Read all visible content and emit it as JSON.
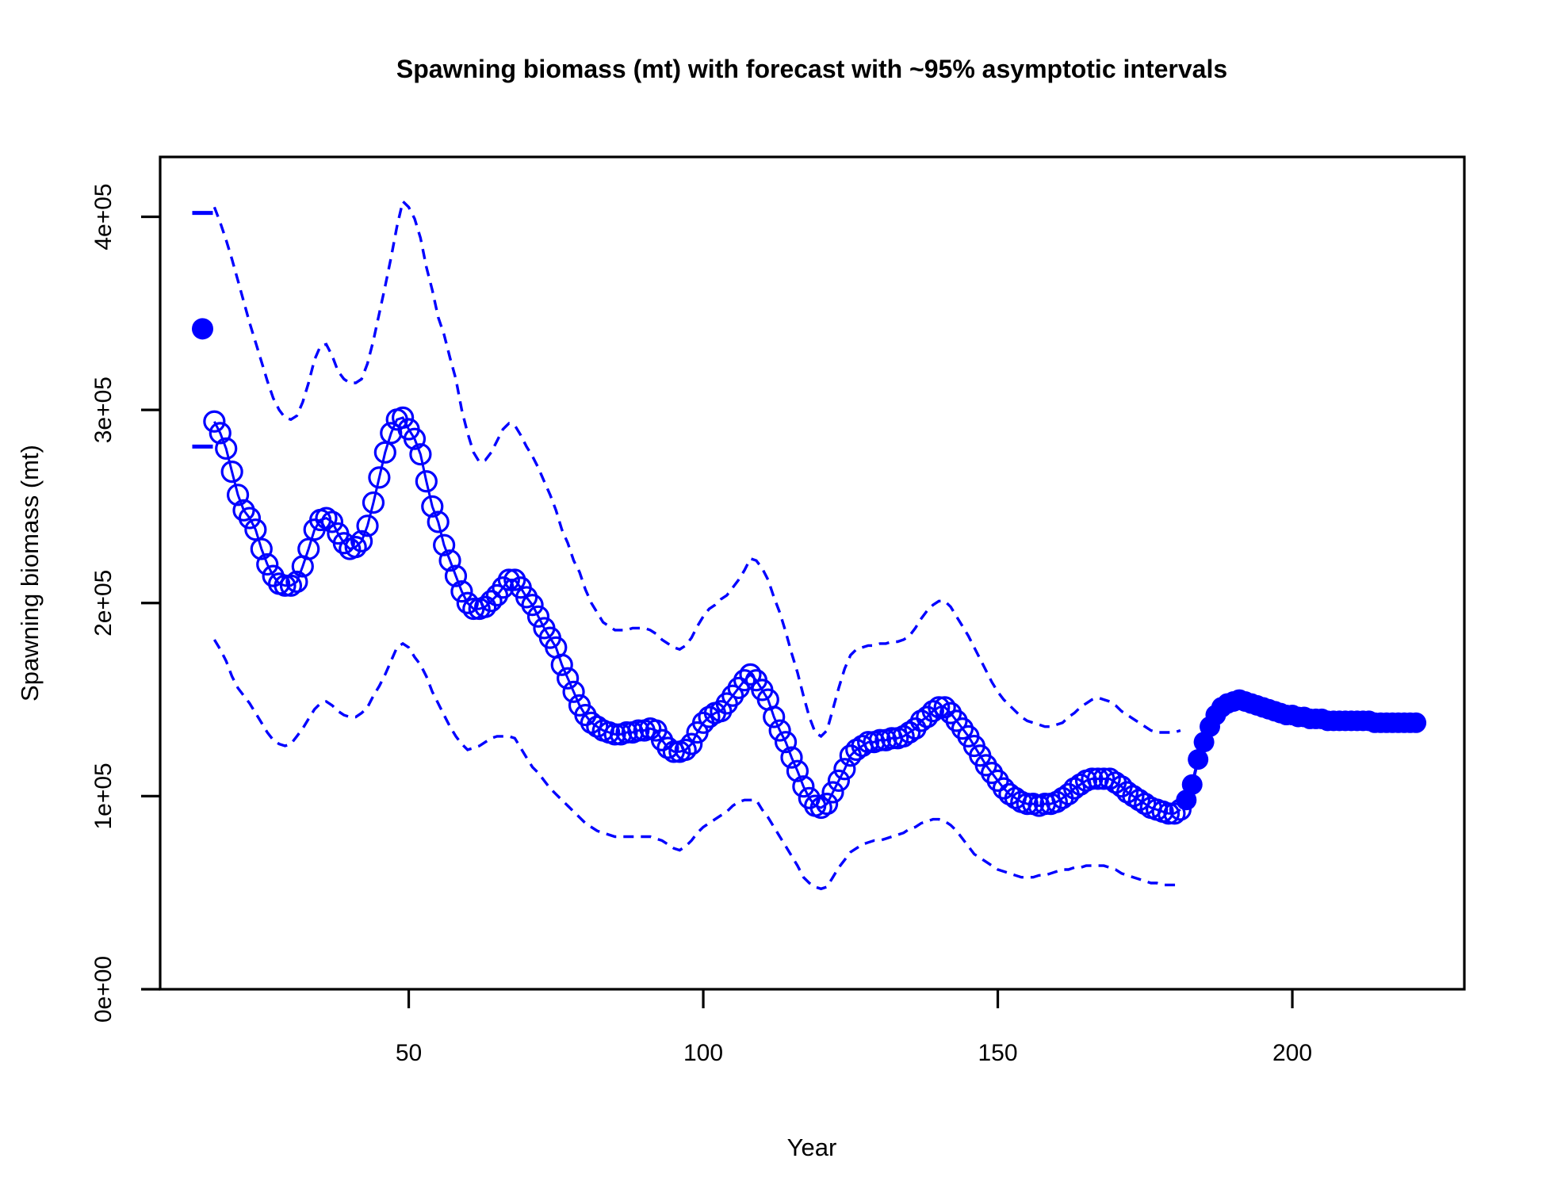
{
  "chart_data": {
    "type": "line",
    "title": "Spawning biomass (mt) with forecast with ~95% asymptotic intervals",
    "xlabel": "Year",
    "ylabel": "Spawning biomass (mt)",
    "x_ticks": [
      50,
      100,
      150,
      200
    ],
    "y_ticks": [
      {
        "value": 0,
        "label": "0e+00"
      },
      {
        "value": 100000,
        "label": "1e+05"
      },
      {
        "value": 200000,
        "label": "2e+05"
      },
      {
        "value": 300000,
        "label": "3e+05"
      },
      {
        "value": 400000,
        "label": "4e+05"
      }
    ],
    "xlim": [
      7.8,
      229.2
    ],
    "ylim": [
      0,
      431000
    ],
    "grid": false,
    "legend_position": "none",
    "accent_color": "#0000ff",
    "frame_color": "#000000",
    "units_note": "series values in thousands of mt",
    "series": [
      {
        "name": "virgin-biomass-point",
        "style": "filled_point_with_ci_dashes",
        "x": [
          15
        ],
        "values": [
          342
        ],
        "ci_upper": [
          402
        ],
        "ci_lower": [
          281
        ]
      },
      {
        "name": "estimated-spawning-biomass",
        "style": "line_open_circles",
        "start_year": 17,
        "values": [
          294,
          288,
          280,
          268,
          256,
          248,
          244,
          238,
          228,
          220,
          214,
          210,
          209,
          209,
          211,
          219,
          228,
          238,
          243,
          244,
          242,
          236,
          231,
          228,
          229,
          232,
          240,
          252,
          265,
          278,
          288,
          295,
          296,
          290,
          285,
          277,
          263,
          250,
          242,
          230,
          222,
          214,
          206,
          200,
          197,
          197,
          198,
          201,
          204,
          208,
          212,
          212,
          208,
          203,
          199,
          193,
          187,
          182,
          177,
          168,
          161,
          154,
          147,
          142,
          138,
          136,
          134,
          133,
          132,
          132,
          133,
          133,
          134,
          134,
          135,
          134,
          129,
          125,
          123,
          123,
          124,
          127,
          133,
          138,
          141,
          143,
          144,
          148,
          152,
          156,
          160,
          163,
          160,
          155,
          150,
          141,
          134,
          128,
          120,
          113,
          105,
          99,
          95,
          94,
          96,
          102,
          108,
          114,
          121,
          124,
          126,
          128,
          128,
          129,
          129,
          130,
          130,
          131,
          133,
          135,
          139,
          141,
          144,
          146,
          146,
          143,
          139,
          135,
          131,
          126,
          121,
          116,
          112,
          108,
          104,
          101,
          99,
          97,
          96,
          96,
          95,
          96,
          96,
          97,
          99,
          101,
          104,
          106,
          108,
          109,
          109,
          109,
          109,
          107,
          105,
          102,
          100,
          98,
          96,
          94,
          93,
          92,
          91,
          91,
          93
        ]
      },
      {
        "name": "forecast-spawning-biomass",
        "style": "line_filled_circles",
        "start_year": 182,
        "values": [
          98,
          106,
          119,
          128,
          136,
          142,
          146,
          148,
          149,
          150,
          149,
          148,
          147,
          146,
          145,
          144,
          143,
          142,
          142,
          141,
          141,
          140,
          140,
          140,
          139,
          139,
          139,
          139,
          139,
          139,
          139,
          139,
          138,
          138,
          138,
          138,
          138,
          138,
          138,
          138
        ]
      },
      {
        "name": "upper-95-interval",
        "style": "dashed_line",
        "start_year": 17,
        "values": [
          405,
          397,
          388,
          378,
          367,
          356,
          345,
          335,
          325,
          315,
          306,
          300,
          296,
          295,
          297,
          304,
          314,
          326,
          333,
          334,
          328,
          320,
          316,
          314,
          314,
          316,
          324,
          336,
          350,
          364,
          379,
          395,
          408,
          405,
          399,
          389,
          374,
          362,
          348,
          339,
          327,
          316,
          300,
          288,
          278,
          273,
          274,
          278,
          284,
          290,
          293,
          292,
          287,
          281,
          276,
          270,
          263,
          256,
          248,
          238,
          231,
          222,
          216,
          207,
          200,
          195,
          190,
          188,
          186,
          186,
          186,
          187,
          187,
          187,
          186,
          184,
          181,
          179,
          177,
          176,
          178,
          182,
          188,
          193,
          197,
          199,
          202,
          204,
          208,
          212,
          217,
          223,
          222,
          218,
          212,
          203,
          195,
          185,
          174,
          164,
          152,
          141,
          133,
          131,
          134,
          145,
          156,
          166,
          173,
          176,
          177,
          178,
          178,
          179,
          179,
          180,
          180,
          181,
          183,
          187,
          192,
          196,
          199,
          201,
          201,
          198,
          193,
          188,
          183,
          177,
          171,
          165,
          159,
          154,
          150,
          147,
          144,
          141,
          139,
          138,
          137,
          136,
          136,
          137,
          138,
          141,
          143,
          146,
          148,
          150,
          151,
          150,
          149,
          147,
          144,
          142,
          140,
          138,
          136,
          134,
          133,
          133,
          133,
          133,
          134
        ]
      },
      {
        "name": "lower-95-interval",
        "style": "dashed_line",
        "start_year": 17,
        "values": [
          181,
          176,
          170,
          162,
          156,
          152,
          148,
          143,
          138,
          133,
          129,
          127,
          126,
          127,
          131,
          135,
          140,
          145,
          148,
          149,
          147,
          144,
          142,
          141,
          141,
          143,
          146,
          152,
          157,
          163,
          170,
          177,
          179,
          177,
          172,
          168,
          162,
          154,
          148,
          142,
          136,
          131,
          127,
          124,
          125,
          126,
          128,
          130,
          131,
          131,
          131,
          130,
          125,
          120,
          115,
          112,
          108,
          104,
          101,
          98,
          95,
          92,
          89,
          86,
          84,
          82,
          81,
          80,
          79,
          79,
          79,
          79,
          79,
          79,
          79,
          78,
          77,
          75,
          73,
          72,
          74,
          77,
          81,
          84,
          86,
          88,
          90,
          92,
          95,
          97,
          98,
          98,
          98,
          93,
          89,
          84,
          79,
          74,
          69,
          64,
          58,
          55,
          53,
          52,
          53,
          58,
          63,
          67,
          71,
          73,
          75,
          76,
          77,
          77,
          78,
          79,
          80,
          81,
          83,
          84,
          86,
          87,
          88,
          88,
          87,
          85,
          82,
          78,
          74,
          70,
          68,
          66,
          64,
          62,
          61,
          60,
          59,
          58,
          58,
          58,
          59,
          59,
          60,
          61,
          62,
          62,
          63,
          63,
          64,
          64,
          64,
          64,
          63,
          62,
          60,
          59,
          58,
          57,
          56,
          55,
          55,
          54,
          54,
          54,
          54
        ]
      }
    ]
  }
}
